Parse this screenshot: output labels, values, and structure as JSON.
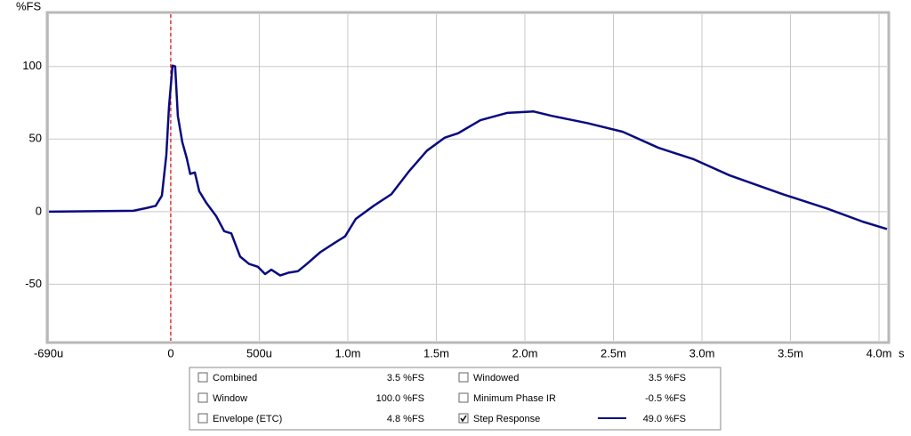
{
  "chart_data": {
    "type": "line",
    "y_label": "%FS",
    "x_label": "s",
    "xlim": [
      -0.000688,
      0.004045
    ],
    "ylim": [
      -89,
      136
    ],
    "xticks": [
      {
        "value": -0.00069,
        "label": "-690u"
      },
      0,
      {
        "value": 0.0005,
        "label": "500u"
      },
      {
        "value": 0.001,
        "label": "1.0m"
      },
      {
        "value": 0.0015,
        "label": "1.5m"
      },
      {
        "value": 0.002,
        "label": "2.0m"
      },
      {
        "value": 0.0025,
        "label": "2.5m"
      },
      {
        "value": 0.003,
        "label": "3.0m"
      },
      {
        "value": 0.0035,
        "label": "3.5m"
      },
      {
        "value": 0.004,
        "label": "4.0m"
      }
    ],
    "yticks": [
      -50,
      0,
      50,
      100
    ],
    "grid": true,
    "reference_line": {
      "x": 0,
      "color": "#e00000"
    },
    "series": [
      {
        "name": "Step Response",
        "color": "#0a0a80",
        "x": [
          -0.000688,
          -0.000211,
          -0.000136,
          -8.5e-05,
          -5e-05,
          -2.5e-05,
          -1e-05,
          1e-05,
          2.5e-05,
          4e-05,
          6.5e-05,
          9e-05,
          0.00011,
          0.000136,
          0.000161,
          0.000201,
          0.000256,
          0.000302,
          0.000342,
          0.000392,
          0.000442,
          0.000492,
          0.000533,
          0.000568,
          0.000618,
          0.000668,
          0.000719,
          0.000769,
          0.000844,
          0.00092,
          0.000985,
          0.001045,
          0.001146,
          0.001246,
          0.001347,
          0.001447,
          0.001548,
          0.001623,
          0.001749,
          0.001899,
          0.00205,
          0.002151,
          0.002352,
          0.002553,
          0.002754,
          0.002955,
          0.003156,
          0.003457,
          0.003709,
          0.00391,
          0.004045
        ],
        "values": [
          0,
          0.6,
          2.5,
          4,
          11,
          39,
          72,
          100.6,
          100,
          66,
          48,
          37,
          26,
          27,
          14,
          6,
          -3,
          -13.5,
          -15,
          -31,
          -36,
          -38,
          -43,
          -40,
          -44,
          -42,
          -41,
          -36,
          -28,
          -22,
          -17,
          -5,
          4,
          12,
          28,
          42,
          51,
          54,
          63,
          68,
          69,
          66,
          61,
          55,
          44,
          36,
          25,
          12,
          2,
          -7,
          -12
        ]
      }
    ],
    "legend": {
      "items": [
        {
          "name": "Combined",
          "reading": "3.5 %FS",
          "checked": false,
          "enabled": true
        },
        {
          "name": "Windowed",
          "reading": "3.5 %FS",
          "checked": false,
          "enabled": true
        },
        {
          "name": "Window",
          "reading": "100.0 %FS",
          "checked": false,
          "enabled": true
        },
        {
          "name": "Minimum Phase IR",
          "reading": "-0.5 %FS",
          "checked": false,
          "enabled": false
        },
        {
          "name": "Envelope (ETC)",
          "reading": "4.8 %FS",
          "checked": false,
          "enabled": true
        },
        {
          "name": "Step Response",
          "reading": "49.0 %FS",
          "checked": true,
          "enabled": true
        }
      ]
    }
  }
}
